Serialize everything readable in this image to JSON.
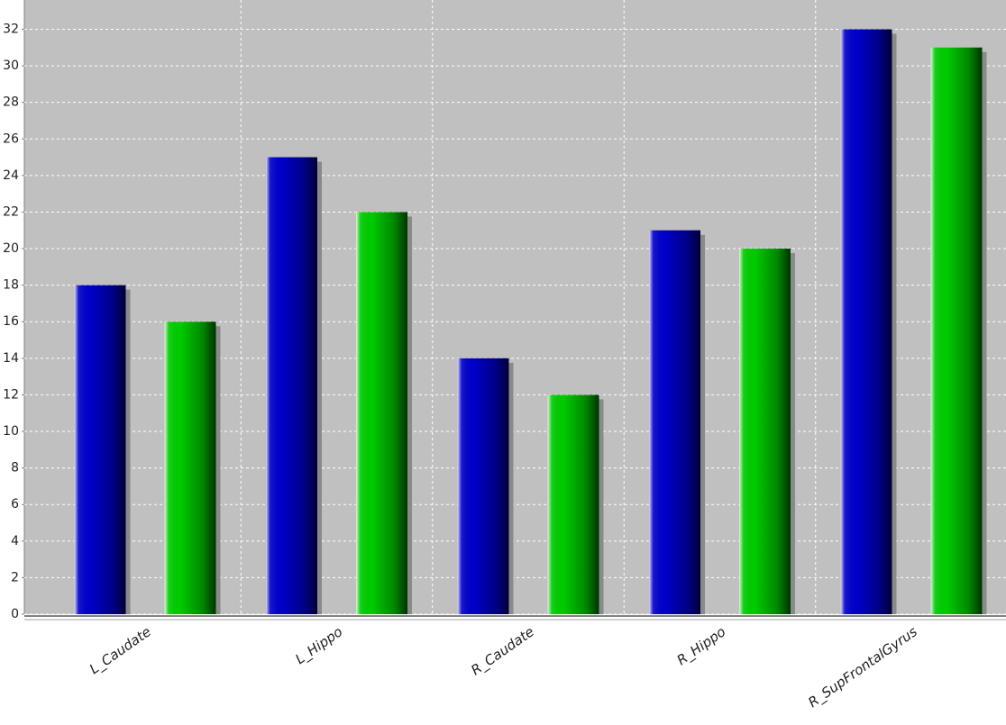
{
  "chart_data": {
    "type": "bar",
    "categories": [
      "L_Caudate",
      "L_Hippo",
      "R_Caudate",
      "R_Hippo",
      "R_SupFrontalGyrus"
    ],
    "series": [
      {
        "color": "#0000cc",
        "values": [
          18,
          25,
          14,
          21,
          32
        ]
      },
      {
        "color": "#00cc00",
        "values": [
          16,
          22,
          12,
          20,
          31
        ]
      }
    ],
    "ylim": [
      0,
      33.6
    ],
    "yticks": [
      0,
      2,
      4,
      6,
      8,
      10,
      12,
      14,
      16,
      18,
      20,
      22,
      24,
      26,
      28,
      30,
      32
    ],
    "grid": true
  }
}
